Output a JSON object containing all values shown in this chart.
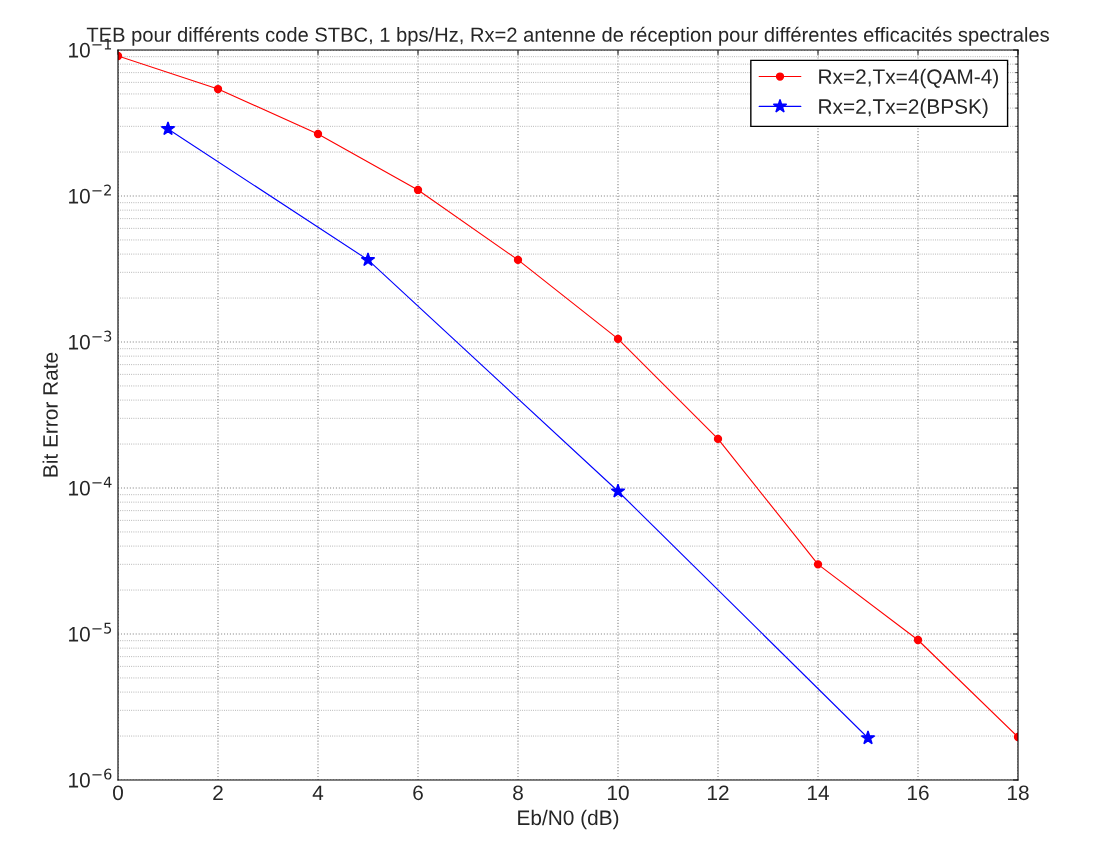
{
  "chart_data": {
    "type": "line",
    "title": "TEB pour différents code STBC, 1 bps/Hz, Rx=2 antenne de réception pour différentes efficacités spectrales",
    "xlabel": "Eb/N0 (dB)",
    "ylabel": "Bit Error Rate",
    "log": "y",
    "grid": true,
    "legend": "top right",
    "xlim": [
      0,
      18
    ],
    "xticks": [
      0,
      2,
      4,
      6,
      8,
      10,
      12,
      14,
      16,
      18
    ],
    "ylim": [
      1e-06,
      0.1
    ],
    "yticks": [
      {
        "value": 1e-06,
        "label": "10$^{−6}$"
      },
      {
        "value": 1e-05,
        "label": "10$^{−5}$"
      },
      {
        "value": 0.0001,
        "label": "10$^{−4}$"
      },
      {
        "value": 0.001,
        "label": "10$^{−3}$"
      },
      {
        "value": 0.01,
        "label": "10$^{−2}$"
      },
      {
        "value": 0.1,
        "label": "10$^{−1}$"
      }
    ],
    "series": [
      {
        "name": "Rx=2,Tx=4(QAM-4)",
        "color": "#ff0000",
        "marker": "circle",
        "x": [
          0,
          2,
          4,
          6,
          8,
          10,
          12,
          14,
          16,
          18
        ],
        "values": [
          0.091,
          0.054,
          0.0266,
          0.011,
          0.00365,
          0.00105,
          0.000217,
          3e-05,
          9.1e-06,
          1.97e-06
        ]
      },
      {
        "name": "Rx=2,Tx=2(BPSK)",
        "color": "#0000ff",
        "marker": "star",
        "x": [
          1,
          5,
          10,
          15
        ],
        "values": [
          0.0288,
          0.00365,
          9.5e-05,
          1.94e-06
        ]
      }
    ]
  }
}
